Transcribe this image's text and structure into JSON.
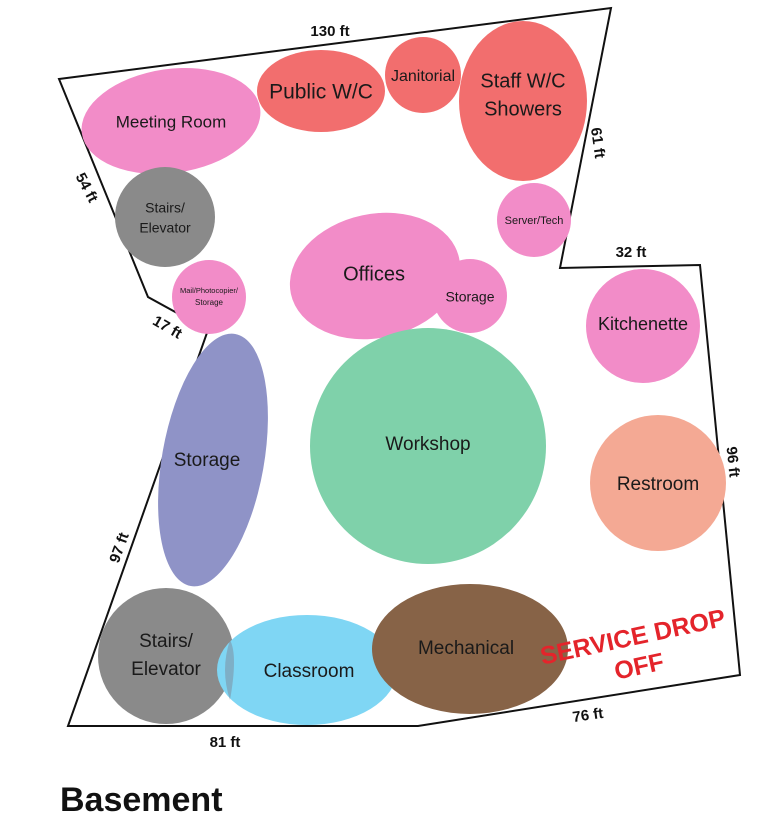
{
  "title": "Basement",
  "service_label": [
    "SERVICE DROP",
    "OFF"
  ],
  "colors": {
    "pink": "#f28cc8",
    "red": "#f26e6e",
    "gray": "#8a8a8a",
    "purple": "#8f93c7",
    "green": "#7fd1aa",
    "cyan": "#7fd6f4",
    "brown": "#876347",
    "salmon": "#f4a994",
    "service": "#e4242b"
  },
  "rooms": {
    "meeting_room": "Meeting Room",
    "public_wc": "Public W/C",
    "janitorial": "Janitorial",
    "staff_wc": [
      "Staff W/C",
      "Showers"
    ],
    "stairs_top": [
      "Stairs/",
      "Elevator"
    ],
    "server_tech": "Server/Tech",
    "mail": [
      "Mail/Photocopier/",
      "Storage"
    ],
    "offices": "Offices",
    "storage_small": "Storage",
    "kitchenette": "Kitchenette",
    "storage_tall": "Storage",
    "workshop": "Workshop",
    "restroom": "Restroom",
    "stairs_bottom": [
      "Stairs/",
      "Elevator"
    ],
    "classroom": "Classroom",
    "mechanical": "Mechanical"
  },
  "dimensions": {
    "top": "130 ft",
    "left_upper": "54 ft",
    "right_upper": "61 ft",
    "notch_top": "32 ft",
    "notch_left": "17 ft",
    "right_lower": "96 ft",
    "left_lower": "97 ft",
    "bottom_left": "81 ft",
    "bottom_right": "76 ft"
  }
}
